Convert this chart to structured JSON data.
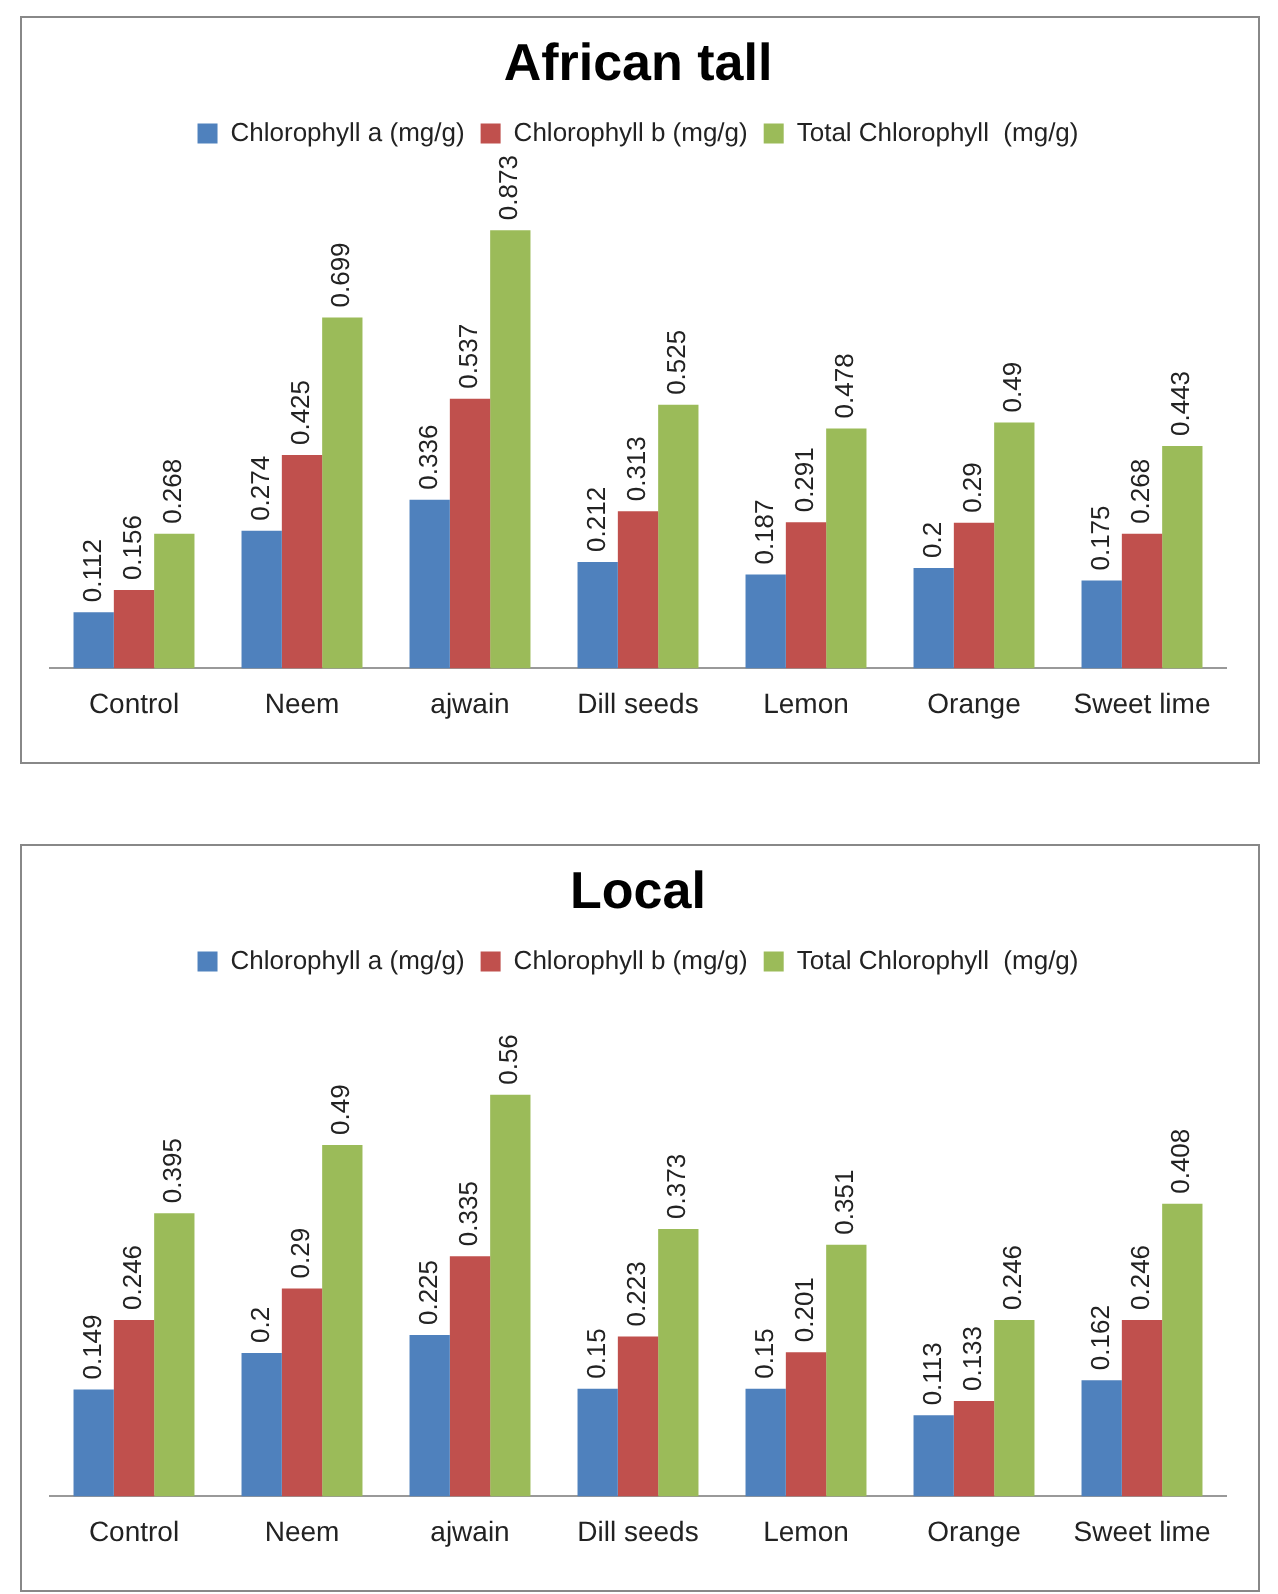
{
  "chart_data": [
    {
      "type": "bar",
      "title": "African tall",
      "categories": [
        "Control",
        "Neem",
        "ajwain",
        "Dill seeds",
        "Lemon",
        "Orange",
        "Sweet lime"
      ],
      "series": [
        {
          "name": "Chlorophyll a (mg/g)",
          "color": "#4f81bd",
          "values": [
            0.112,
            0.274,
            0.336,
            0.212,
            0.187,
            0.2,
            0.175
          ]
        },
        {
          "name": "Chlorophyll b (mg/g)",
          "color": "#c0504d",
          "values": [
            0.156,
            0.425,
            0.537,
            0.313,
            0.291,
            0.29,
            0.268
          ]
        },
        {
          "name": "Total Chlorophyll  (mg/g)",
          "color": "#9bbb59",
          "values": [
            0.268,
            0.699,
            0.873,
            0.525,
            0.478,
            0.49,
            0.443
          ]
        }
      ],
      "data_labels": true,
      "legend": "top",
      "grid": false,
      "tick_labels": "x"
    },
    {
      "type": "bar",
      "title": "Local",
      "categories": [
        "Control",
        "Neem",
        "ajwain",
        "Dill seeds",
        "Lemon",
        "Orange",
        "Sweet lime"
      ],
      "series": [
        {
          "name": "Chlorophyll a (mg/g)",
          "color": "#4f81bd",
          "values": [
            0.149,
            0.2,
            0.225,
            0.15,
            0.15,
            0.113,
            0.162
          ]
        },
        {
          "name": "Chlorophyll b (mg/g)",
          "color": "#c0504d",
          "values": [
            0.246,
            0.29,
            0.335,
            0.223,
            0.201,
            0.133,
            0.246
          ]
        },
        {
          "name": "Total Chlorophyll  (mg/g)",
          "color": "#9bbb59",
          "values": [
            0.395,
            0.49,
            0.56,
            0.373,
            0.351,
            0.246,
            0.408
          ]
        }
      ],
      "data_labels": true,
      "legend": "top",
      "grid": false,
      "tick_labels": "x"
    }
  ]
}
